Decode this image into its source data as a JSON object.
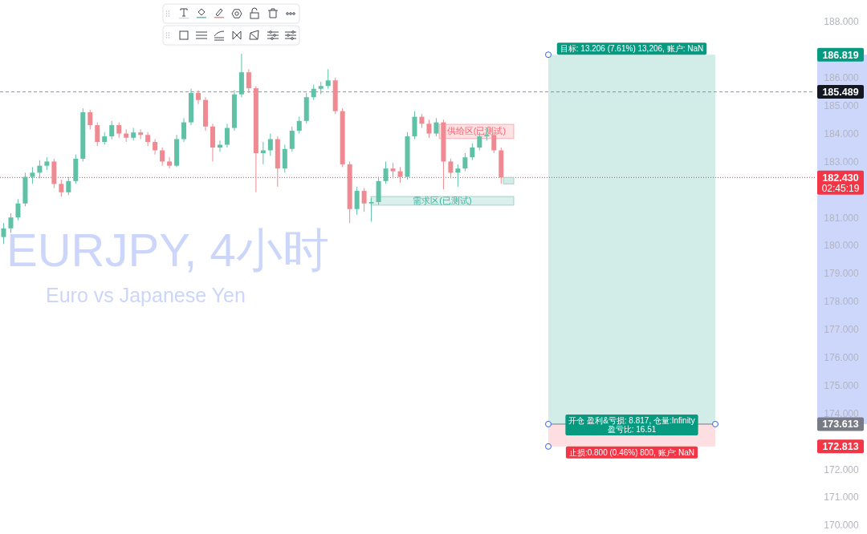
{
  "chart_data": {
    "type": "candlestick",
    "title": "EURJPY, 4小时",
    "subtitle": "Euro vs Japanese Yen",
    "categories": [
      null,
      null,
      null,
      null,
      null,
      null,
      null,
      null,
      null,
      null,
      null,
      null,
      null,
      null,
      null,
      null,
      null,
      null,
      null,
      null,
      null,
      null,
      null,
      null,
      null,
      null,
      null,
      null,
      null,
      null,
      null,
      null,
      null,
      null,
      null,
      null,
      null,
      null,
      null,
      null,
      null,
      null,
      null,
      null,
      null,
      null,
      null,
      null,
      null,
      null,
      null,
      null,
      null,
      null,
      null,
      null,
      null,
      null,
      null,
      null,
      null,
      null,
      null,
      null,
      null,
      null,
      null,
      null,
      null,
      null,
      null,
      null,
      null,
      null,
      null,
      null,
      null,
      null,
      null,
      null,
      null,
      null,
      null,
      null,
      null,
      null,
      null,
      null,
      null,
      null,
      null,
      null,
      null,
      null,
      null,
      null,
      null,
      null,
      null,
      null,
      null,
      null,
      null,
      null,
      null,
      null,
      null,
      null,
      null,
      null,
      null,
      null,
      null
    ],
    "ohlc": [
      [
        180.3,
        180.8,
        180.05,
        180.61
      ],
      [
        180.61,
        181.15,
        180.45,
        181.0
      ],
      [
        181.0,
        181.65,
        180.9,
        181.5
      ],
      [
        181.5,
        182.6,
        181.4,
        182.45
      ],
      [
        182.45,
        182.8,
        182.2,
        182.6
      ],
      [
        182.6,
        183.05,
        182.4,
        182.85
      ],
      [
        182.85,
        183.15,
        182.7,
        183.0
      ],
      [
        183.0,
        183.1,
        182.05,
        182.2
      ],
      [
        182.2,
        182.35,
        181.75,
        181.9
      ],
      [
        181.9,
        182.45,
        181.8,
        182.3
      ],
      [
        182.3,
        183.25,
        182.2,
        183.1
      ],
      [
        183.1,
        184.9,
        183.0,
        184.76
      ],
      [
        184.76,
        184.85,
        184.15,
        184.3
      ],
      [
        184.3,
        184.4,
        183.55,
        183.7
      ],
      [
        183.7,
        184.05,
        183.6,
        183.9
      ],
      [
        183.9,
        184.45,
        183.8,
        184.3
      ],
      [
        184.3,
        184.4,
        183.85,
        184.0
      ],
      [
        184.0,
        184.15,
        183.7,
        183.85
      ],
      [
        183.85,
        184.2,
        183.75,
        184.04
      ],
      [
        184.04,
        184.15,
        183.8,
        183.95
      ],
      [
        183.95,
        184.05,
        183.55,
        183.7
      ],
      [
        183.7,
        183.8,
        183.25,
        183.4
      ],
      [
        183.4,
        183.5,
        182.85,
        183.0
      ],
      [
        183.0,
        183.15,
        182.75,
        182.85
      ],
      [
        182.85,
        183.95,
        182.8,
        183.8
      ],
      [
        183.8,
        184.55,
        183.7,
        184.4
      ],
      [
        184.4,
        185.6,
        184.3,
        185.45
      ],
      [
        185.45,
        185.55,
        185.05,
        185.2
      ],
      [
        185.2,
        185.3,
        184.1,
        184.25
      ],
      [
        184.25,
        184.35,
        183.0,
        183.5
      ],
      [
        183.5,
        183.75,
        183.35,
        183.6
      ],
      [
        183.6,
        184.35,
        183.5,
        184.2
      ],
      [
        184.2,
        185.55,
        184.1,
        185.4
      ],
      [
        185.4,
        186.85,
        185.3,
        186.19
      ],
      [
        186.19,
        186.3,
        185.45,
        185.62
      ],
      [
        185.62,
        185.7,
        181.9,
        183.3
      ],
      [
        183.3,
        183.7,
        182.9,
        183.4
      ],
      [
        183.4,
        184.0,
        183.2,
        183.8
      ],
      [
        183.8,
        183.9,
        182.1,
        182.75
      ],
      [
        182.75,
        183.6,
        182.6,
        183.45
      ],
      [
        183.45,
        184.25,
        183.35,
        184.1
      ],
      [
        184.1,
        184.6,
        184.0,
        184.45
      ],
      [
        184.45,
        185.45,
        184.35,
        185.3
      ],
      [
        185.3,
        185.75,
        185.2,
        185.6
      ],
      [
        185.6,
        185.85,
        185.4,
        185.7
      ],
      [
        185.7,
        186.3,
        185.6,
        185.9
      ],
      [
        185.9,
        186.0,
        184.7,
        184.8
      ],
      [
        184.8,
        184.9,
        182.8,
        182.9
      ],
      [
        182.9,
        183.0,
        180.8,
        181.3
      ],
      [
        181.3,
        182.1,
        181.1,
        181.95
      ],
      [
        181.95,
        182.05,
        181.2,
        181.5
      ],
      [
        181.5,
        181.7,
        180.85,
        181.55
      ],
      [
        181.55,
        182.45,
        181.45,
        182.3
      ],
      [
        182.3,
        183.0,
        182.2,
        182.75
      ],
      [
        182.75,
        182.95,
        182.4,
        182.65
      ],
      [
        182.65,
        182.8,
        182.25,
        182.45
      ],
      [
        182.45,
        184.05,
        182.35,
        183.9
      ],
      [
        183.9,
        184.8,
        183.8,
        184.6
      ],
      [
        184.6,
        184.7,
        184.2,
        184.35
      ],
      [
        184.35,
        184.5,
        183.85,
        184.0
      ],
      [
        184.0,
        184.55,
        183.9,
        184.4
      ],
      [
        184.4,
        184.5,
        182.0,
        183.0
      ],
      [
        183.0,
        183.1,
        182.4,
        182.6
      ],
      [
        182.6,
        182.9,
        182.1,
        182.75
      ],
      [
        182.75,
        183.3,
        182.65,
        183.15
      ],
      [
        183.15,
        183.65,
        183.05,
        183.5
      ],
      [
        183.5,
        184.05,
        183.4,
        183.9
      ],
      [
        183.9,
        184.2,
        183.75,
        183.95
      ],
      [
        183.95,
        184.05,
        183.3,
        183.4
      ],
      [
        183.4,
        183.5,
        182.2,
        182.43
      ],
      null,
      null,
      null,
      null,
      null,
      null,
      null,
      null,
      null,
      null,
      null,
      null,
      null,
      null,
      null,
      null,
      null,
      null,
      null,
      null,
      null,
      null,
      null,
      null,
      null,
      null,
      null,
      null,
      null,
      null,
      null,
      null,
      null,
      null,
      null,
      null,
      null,
      null,
      null,
      null,
      null,
      null,
      null
    ],
    "ylim": [
      170,
      188
    ],
    "yticks": [
      {
        "value": 170,
        "label": "170.000"
      },
      {
        "value": 171,
        "label": "171.000"
      },
      {
        "value": 172,
        "label": "172.000"
      },
      {
        "value": 174,
        "label": "174.000"
      },
      {
        "value": 175,
        "label": "175.000"
      },
      {
        "value": 176,
        "label": "176.000"
      },
      {
        "value": 177,
        "label": "177.000"
      },
      {
        "value": 178,
        "label": "178.000"
      },
      {
        "value": 179,
        "label": "179.000"
      },
      {
        "value": 180,
        "label": "180.000"
      },
      {
        "value": 181,
        "label": "181.000"
      },
      {
        "value": 183,
        "label": "183.000"
      },
      {
        "value": 184,
        "label": "184.000"
      },
      {
        "value": 185,
        "label": "185.000"
      },
      {
        "value": 186,
        "label": "186.000"
      },
      {
        "value": 188,
        "label": "188.000"
      }
    ],
    "tick_labels": "y",
    "grid": false,
    "ref_lines": [
      {
        "axis": "y",
        "value": 185.489,
        "label": "185.489",
        "color": "#9598a1",
        "line_style": "dashed"
      },
      {
        "axis": "y",
        "value": 182.43,
        "label": "182.430",
        "color": "#f23645",
        "line_style": "dotted"
      }
    ],
    "bands": [
      {
        "axis": "y",
        "from": 173.613,
        "to": 186.819,
        "color": "#089981"
      },
      {
        "axis": "y",
        "from": 172.813,
        "to": 173.613,
        "color": "#f23645"
      },
      {
        "axis": "y",
        "from": 183.82,
        "to": 184.33,
        "label": "供给区(已测试)",
        "color": "#f23645"
      },
      {
        "axis": "y",
        "from": 181.44,
        "to": 181.75,
        "label": "需求区(已测试)",
        "color": "#089981"
      }
    ],
    "annotations": [
      "目标: 13.206 (7.61%) 13,206, 账户: NaN",
      "开仓 盈利&亏损: 8.817, 仓量:Infinity\n盈亏比: 16.51",
      "止损:0.800 (0.46%) 800, 账户: NaN",
      "186.819",
      "173.613",
      "172.813",
      "02:45:19"
    ]
  }
}
